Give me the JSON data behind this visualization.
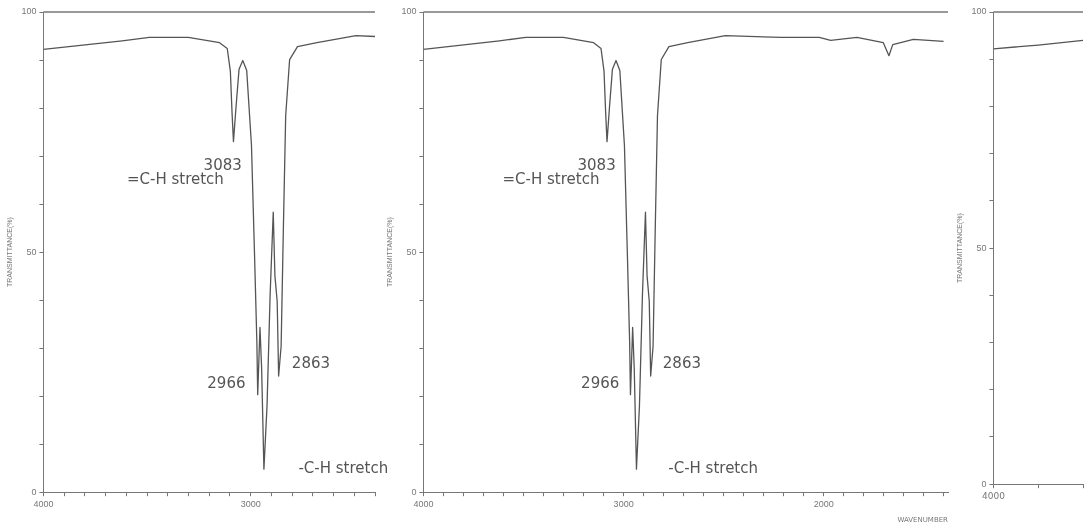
{
  "chart_data": [
    {
      "type": "line",
      "ylabel": "TRANSMITTANCE(%)",
      "xlim": [
        4000,
        2400
      ],
      "ylim": [
        0,
        100
      ],
      "ref_lines": [
        {
          "axis": "y",
          "value": 100
        }
      ],
      "xticks": [
        4000,
        {
          "value": 3900,
          "label": null
        },
        {
          "value": 3800,
          "label": null
        },
        {
          "value": 3700,
          "label": null
        },
        {
          "value": 3600,
          "label": null
        },
        {
          "value": 3500,
          "label": null
        },
        {
          "value": 3400,
          "label": null
        },
        {
          "value": 3300,
          "label": null
        },
        {
          "value": 3200,
          "label": null
        },
        {
          "value": 3100,
          "label": null
        },
        3000,
        {
          "value": 2900,
          "label": null
        },
        {
          "value": 2800,
          "label": null
        },
        {
          "value": 2700,
          "label": null
        },
        {
          "value": 2600,
          "label": null
        },
        {
          "value": 2500,
          "label": null
        },
        {
          "value": 2400,
          "label": null
        }
      ],
      "yticks": [
        0,
        {
          "value": 10,
          "label": null
        },
        {
          "value": 20,
          "label": null
        },
        {
          "value": 30,
          "label": null
        },
        {
          "value": 40,
          "label": null
        },
        50,
        {
          "value": 60,
          "label": null
        },
        {
          "value": 70,
          "label": null
        },
        {
          "value": 80,
          "label": null
        },
        {
          "value": 90,
          "label": null
        },
        100
      ],
      "x": [
        4000,
        3620,
        3489,
        3301,
        3150,
        3113,
        3098,
        3090,
        3083,
        3071,
        3056,
        3038,
        3019,
        2996,
        2981,
        2970,
        2966,
        2955,
        2947,
        2936,
        2921,
        2906,
        2891,
        2883,
        2872,
        2865,
        2853,
        2842,
        2831,
        2812,
        2774,
        2680,
        2492,
        2400
      ],
      "series": [
        {
          "color": "#555555",
          "values": [
            92.2,
            94.0,
            94.7,
            94.7,
            93.6,
            92.4,
            87.7,
            79.2,
            73.0,
            80.0,
            88.1,
            89.9,
            87.8,
            72.2,
            49.0,
            31.2,
            20.3,
            34.3,
            25.7,
            4.8,
            18.0,
            41.2,
            58.3,
            45.1,
            39.7,
            24.2,
            30.4,
            55.2,
            78.4,
            90.1,
            92.8,
            93.6,
            95.1,
            94.9
          ]
        }
      ],
      "annotations": [
        "3083",
        "=C-H stretch",
        "2966",
        "2863",
        "-C-H stretch"
      ],
      "grid": false,
      "legend": false,
      "marker": "none",
      "line_style": "solid"
    },
    {
      "type": "line",
      "xlabel": "WAVENUMBER",
      "ylabel": "TRANSMITTANCE(%)",
      "xlim": [
        4000,
        1380
      ],
      "ylim": [
        0,
        100
      ],
      "ref_lines": [
        {
          "axis": "y",
          "value": 100
        }
      ],
      "xticks": [
        4000,
        {
          "value": 3900,
          "label": null
        },
        {
          "value": 3800,
          "label": null
        },
        {
          "value": 3700,
          "label": null
        },
        {
          "value": 3600,
          "label": null
        },
        {
          "value": 3500,
          "label": null
        },
        {
          "value": 3400,
          "label": null
        },
        {
          "value": 3300,
          "label": null
        },
        {
          "value": 3200,
          "label": null
        },
        {
          "value": 3100,
          "label": null
        },
        3000,
        {
          "value": 2900,
          "label": null
        },
        {
          "value": 2800,
          "label": null
        },
        {
          "value": 2700,
          "label": null
        },
        {
          "value": 2600,
          "label": null
        },
        {
          "value": 2500,
          "label": null
        },
        {
          "value": 2400,
          "label": null
        },
        {
          "value": 2300,
          "label": null
        },
        {
          "value": 2200,
          "label": null
        },
        {
          "value": 2100,
          "label": null
        },
        2000,
        {
          "value": 1900,
          "label": null
        },
        {
          "value": 1800,
          "label": null
        },
        {
          "value": 1700,
          "label": null
        },
        {
          "value": 1600,
          "label": null
        },
        {
          "value": 1500,
          "label": null
        },
        {
          "value": 1400,
          "label": null
        }
      ],
      "yticks": [
        0,
        {
          "value": 10,
          "label": null
        },
        {
          "value": 20,
          "label": null
        },
        {
          "value": 30,
          "label": null
        },
        {
          "value": 40,
          "label": null
        },
        50,
        {
          "value": 60,
          "label": null
        },
        {
          "value": 70,
          "label": null
        },
        {
          "value": 80,
          "label": null
        },
        {
          "value": 90,
          "label": null
        },
        100
      ],
      "x": [
        4000,
        3620,
        3489,
        3301,
        3150,
        3113,
        3098,
        3090,
        3083,
        3071,
        3056,
        3038,
        3019,
        2996,
        2981,
        2970,
        2966,
        2955,
        2947,
        2936,
        2921,
        2906,
        2891,
        2883,
        2872,
        2865,
        2853,
        2842,
        2831,
        2812,
        2774,
        2680,
        2492,
        2211,
        2023,
        1966,
        1835,
        1703,
        1675,
        1656,
        1553,
        1402
      ],
      "series": [
        {
          "color": "#555555",
          "values": [
            92.2,
            94.0,
            94.7,
            94.7,
            93.6,
            92.4,
            87.7,
            79.2,
            73.0,
            80.0,
            88.1,
            89.9,
            87.8,
            72.2,
            49.0,
            31.2,
            20.3,
            34.3,
            25.7,
            4.8,
            18.0,
            41.2,
            58.3,
            45.1,
            39.7,
            24.2,
            30.4,
            55.2,
            78.4,
            90.1,
            92.8,
            93.6,
            95.1,
            94.7,
            94.7,
            94.1,
            94.7,
            93.6,
            90.9,
            93.2,
            94.3,
            93.9
          ]
        }
      ],
      "annotations": [
        "3083",
        "=C-H stretch",
        "2966",
        "2863",
        "-C-H stretch"
      ],
      "grid": false,
      "legend": false,
      "marker": "none",
      "line_style": "solid"
    },
    {
      "type": "line",
      "ylabel": "TRANSMITTANCE(%)",
      "ylim": [
        0,
        100
      ],
      "ref_lines": [
        {
          "axis": "y",
          "value": 100
        }
      ],
      "categories": [
        null,
        null,
        null
      ],
      "annotations": [
        "4000"
      ],
      "yticks": [
        0,
        {
          "value": 10,
          "label": null
        },
        {
          "value": 20,
          "label": null
        },
        {
          "value": 30,
          "label": null
        },
        {
          "value": 40,
          "label": null
        },
        50,
        {
          "value": 60,
          "label": null
        },
        {
          "value": 70,
          "label": null
        },
        {
          "value": 80,
          "label": null
        },
        {
          "value": 90,
          "label": null
        },
        100
      ],
      "series": [
        {
          "color": "#555555",
          "values": [
            92.2,
            93.0,
            94.0
          ]
        }
      ],
      "grid": false,
      "legend": false,
      "marker": "none",
      "line_style": "solid"
    }
  ]
}
